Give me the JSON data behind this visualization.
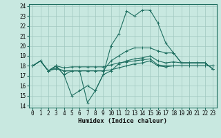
{
  "title": "",
  "xlabel": "Humidex (Indice chaleur)",
  "ylabel": "",
  "xlim": [
    -0.5,
    23.5
  ],
  "ylim": [
    13.8,
    24.2
  ],
  "yticks": [
    14,
    15,
    16,
    17,
    18,
    19,
    20,
    21,
    22,
    23,
    24
  ],
  "xticks": [
    0,
    1,
    2,
    3,
    4,
    5,
    6,
    7,
    8,
    9,
    10,
    11,
    12,
    13,
    14,
    15,
    16,
    17,
    18,
    19,
    20,
    21,
    22,
    23
  ],
  "bg_color": "#c8e8e0",
  "grid_color": "#a0c8c0",
  "line_color": "#1e6e60",
  "lines": [
    {
      "x": [
        0,
        1,
        2,
        3,
        4,
        5,
        6,
        7,
        8,
        9,
        10,
        11,
        12,
        13,
        14,
        15,
        16,
        17,
        18,
        19,
        20,
        21,
        22,
        23
      ],
      "y": [
        18.0,
        18.5,
        17.5,
        18.0,
        17.1,
        15.0,
        15.5,
        16.0,
        15.5,
        17.1,
        20.0,
        21.2,
        23.5,
        23.0,
        23.6,
        23.6,
        22.3,
        20.3,
        19.3,
        18.3,
        18.3,
        18.3,
        18.3,
        17.7
      ]
    },
    {
      "x": [
        0,
        1,
        2,
        3,
        4,
        5,
        6,
        7,
        8,
        9,
        10,
        11,
        12,
        13,
        14,
        15,
        16,
        17,
        18,
        19,
        20,
        21,
        22,
        23
      ],
      "y": [
        18.0,
        18.5,
        17.5,
        17.8,
        17.5,
        17.5,
        17.5,
        14.3,
        15.5,
        17.1,
        17.5,
        18.2,
        18.5,
        18.7,
        18.8,
        19.0,
        18.5,
        18.3,
        18.4,
        18.3,
        18.3,
        18.3,
        18.3,
        17.7
      ]
    },
    {
      "x": [
        0,
        1,
        2,
        3,
        4,
        5,
        6,
        7,
        8,
        9,
        10,
        11,
        12,
        13,
        14,
        15,
        16,
        17,
        18,
        19,
        20,
        21,
        22,
        23
      ],
      "y": [
        18.0,
        18.5,
        17.5,
        18.0,
        17.1,
        17.5,
        17.5,
        17.5,
        17.5,
        17.5,
        18.5,
        19.0,
        19.5,
        19.8,
        19.8,
        19.8,
        19.5,
        19.3,
        19.3,
        18.3,
        18.3,
        18.3,
        18.3,
        17.7
      ]
    },
    {
      "x": [
        0,
        1,
        2,
        3,
        4,
        5,
        6,
        7,
        8,
        9,
        10,
        11,
        12,
        13,
        14,
        15,
        16,
        17,
        18,
        19,
        20,
        21,
        22,
        23
      ],
      "y": [
        18.0,
        18.5,
        17.5,
        17.7,
        17.5,
        17.5,
        17.5,
        17.5,
        17.5,
        17.5,
        17.6,
        17.8,
        18.0,
        18.2,
        18.3,
        18.5,
        18.0,
        17.9,
        18.0,
        18.0,
        18.0,
        18.0,
        18.0,
        18.0
      ]
    },
    {
      "x": [
        0,
        1,
        2,
        3,
        4,
        5,
        6,
        7,
        8,
        9,
        10,
        11,
        12,
        13,
        14,
        15,
        16,
        17,
        18,
        19,
        20,
        21,
        22,
        23
      ],
      "y": [
        18.0,
        18.5,
        17.5,
        18.0,
        17.8,
        17.9,
        17.9,
        17.9,
        17.9,
        17.9,
        18.1,
        18.3,
        18.4,
        18.5,
        18.6,
        18.7,
        18.1,
        18.0,
        18.0,
        18.0,
        18.0,
        18.0,
        18.0,
        18.0
      ]
    }
  ]
}
